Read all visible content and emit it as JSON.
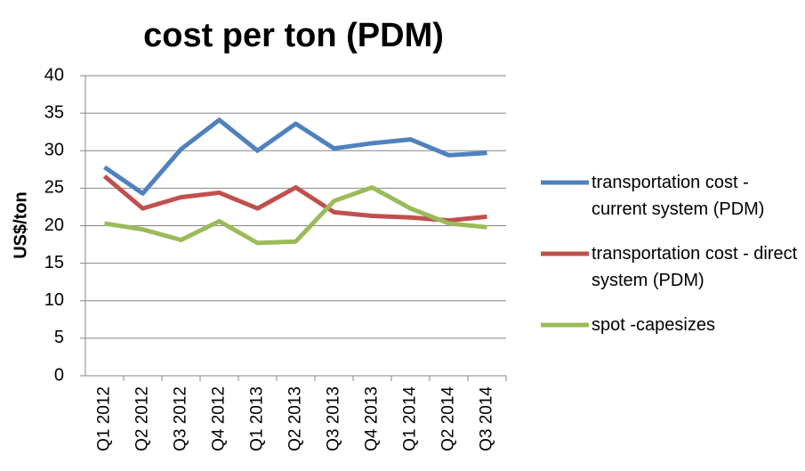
{
  "chart_data": {
    "type": "line",
    "title": "cost per ton (PDM)",
    "y_label": "US$/ton",
    "categories": [
      "Q1 2012",
      "Q2 2012",
      "Q3 2012",
      "Q4 2012",
      "Q1 2013",
      "Q2 2013",
      "Q3 2013",
      "Q4 2013",
      "Q1 2014",
      "Q2 2014",
      "Q3 2014"
    ],
    "series": [
      {
        "name": "transportation cost - current system (PDM)",
        "color": "#4f81bd",
        "values": [
          27.8,
          24.3,
          30.2,
          34.1,
          30.0,
          33.6,
          30.3,
          31.0,
          31.5,
          29.4,
          29.7
        ]
      },
      {
        "name": "transportation cost - direct system (PDM)",
        "color": "#c0504d",
        "values": [
          26.6,
          22.3,
          23.8,
          24.4,
          22.3,
          25.1,
          21.8,
          21.3,
          21.1,
          20.7,
          21.2
        ]
      },
      {
        "name": "spot -capesizes",
        "color": "#9bbb59",
        "values": [
          20.3,
          19.5,
          18.1,
          20.6,
          17.7,
          17.9,
          23.3,
          25.1,
          22.3,
          20.3,
          19.8
        ]
      }
    ],
    "ylim": [
      0,
      40
    ],
    "yticks": [
      0,
      5,
      10,
      15,
      20,
      25,
      30,
      35,
      40
    ],
    "grid": true,
    "legend": "right"
  }
}
